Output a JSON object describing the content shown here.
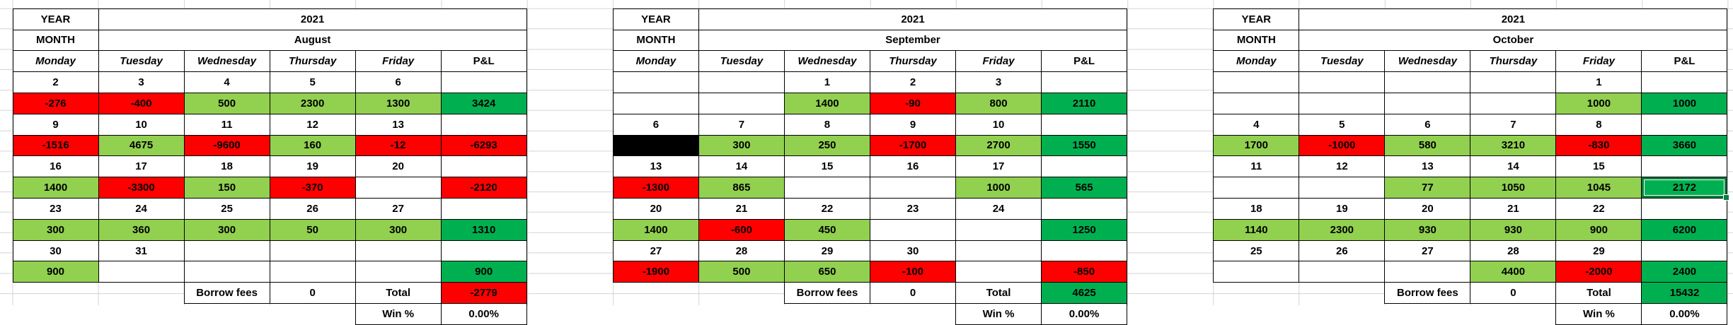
{
  "colors": {
    "loss_red": "#ff0000",
    "gain_light_green": "#92d050",
    "pnl_dark_green": "#00b050",
    "holiday_black": "#000000",
    "gridline_gray": "#d4d4d4",
    "selection_green": "#0c7d41",
    "border_black": "#000000"
  },
  "months": [
    {
      "id": "august",
      "year_row": {
        "label": "YEAR",
        "value": "2021"
      },
      "month_row": {
        "label": "MONTH",
        "value": "August"
      },
      "day_headers": [
        "Monday",
        "Tuesday",
        "Wednesday",
        "Thursday",
        "Friday",
        "P&L"
      ],
      "weeks": [
        {
          "dates": [
            "2",
            "3",
            "4",
            "5",
            "6",
            ""
          ],
          "values": [
            {
              "t": "-276",
              "bg": "red"
            },
            {
              "t": "-400",
              "bg": "red"
            },
            {
              "t": "500",
              "bg": "green"
            },
            {
              "t": "2300",
              "bg": "green"
            },
            {
              "t": "1300",
              "bg": "green"
            },
            {
              "t": "3424",
              "bg": "dgreen"
            }
          ]
        },
        {
          "dates": [
            "9",
            "10",
            "11",
            "12",
            "13",
            ""
          ],
          "values": [
            {
              "t": "-1516",
              "bg": "red"
            },
            {
              "t": "4675",
              "bg": "green"
            },
            {
              "t": "-9600",
              "bg": "red"
            },
            {
              "t": "160",
              "bg": "green"
            },
            {
              "t": "-12",
              "bg": "red"
            },
            {
              "t": "-6293",
              "bg": "red"
            }
          ]
        },
        {
          "dates": [
            "16",
            "17",
            "18",
            "19",
            "20",
            ""
          ],
          "values": [
            {
              "t": "1400",
              "bg": "green"
            },
            {
              "t": "-3300",
              "bg": "red"
            },
            {
              "t": "150",
              "bg": "green"
            },
            {
              "t": "-370",
              "bg": "red"
            },
            {
              "t": ""
            },
            {
              "t": "-2120",
              "bg": "red"
            }
          ]
        },
        {
          "dates": [
            "23",
            "24",
            "25",
            "26",
            "27",
            ""
          ],
          "values": [
            {
              "t": "300",
              "bg": "green"
            },
            {
              "t": "360",
              "bg": "green"
            },
            {
              "t": "300",
              "bg": "green"
            },
            {
              "t": "50",
              "bg": "green"
            },
            {
              "t": "300",
              "bg": "green"
            },
            {
              "t": "1310",
              "bg": "dgreen"
            }
          ]
        },
        {
          "dates": [
            "30",
            "31",
            "",
            "",
            "",
            ""
          ],
          "values": [
            {
              "t": "900",
              "bg": "green"
            },
            {
              "t": ""
            },
            {
              "t": ""
            },
            {
              "t": ""
            },
            {
              "t": ""
            },
            {
              "t": "900",
              "bg": "dgreen"
            }
          ]
        }
      ],
      "footer": {
        "borrow_label": "Borrow fees",
        "borrow_value": "0",
        "total_label": "Total",
        "total": {
          "t": "-2779",
          "bg": "red"
        }
      },
      "win": {
        "label": "Win %",
        "value": "0.00%"
      }
    },
    {
      "id": "september",
      "year_row": {
        "label": "YEAR",
        "value": "2021"
      },
      "month_row": {
        "label": "MONTH",
        "value": "September"
      },
      "day_headers": [
        "Monday",
        "Tuesday",
        "Wednesday",
        "Thursday",
        "Friday",
        "P&L"
      ],
      "weeks": [
        {
          "dates": [
            "",
            "",
            "1",
            "2",
            "3",
            ""
          ],
          "values": [
            {
              "t": ""
            },
            {
              "t": ""
            },
            {
              "t": "1400",
              "bg": "green"
            },
            {
              "t": "-90",
              "bg": "red"
            },
            {
              "t": "800",
              "bg": "green"
            },
            {
              "t": "2110",
              "bg": "dgreen"
            }
          ]
        },
        {
          "dates": [
            "6",
            "7",
            "8",
            "9",
            "10",
            ""
          ],
          "values": [
            {
              "t": "",
              "bg": "blackc"
            },
            {
              "t": "300",
              "bg": "green"
            },
            {
              "t": "250",
              "bg": "green"
            },
            {
              "t": "-1700",
              "bg": "red"
            },
            {
              "t": "2700",
              "bg": "green"
            },
            {
              "t": "1550",
              "bg": "dgreen"
            }
          ]
        },
        {
          "dates": [
            "13",
            "14",
            "15",
            "16",
            "17",
            ""
          ],
          "values": [
            {
              "t": "-1300",
              "bg": "red"
            },
            {
              "t": "865",
              "bg": "green"
            },
            {
              "t": ""
            },
            {
              "t": ""
            },
            {
              "t": "1000",
              "bg": "green"
            },
            {
              "t": "565",
              "bg": "dgreen"
            }
          ]
        },
        {
          "dates": [
            "20",
            "21",
            "22",
            "23",
            "24",
            ""
          ],
          "values": [
            {
              "t": "1400",
              "bg": "green"
            },
            {
              "t": "-600",
              "bg": "red"
            },
            {
              "t": "450",
              "bg": "green"
            },
            {
              "t": ""
            },
            {
              "t": ""
            },
            {
              "t": "1250",
              "bg": "dgreen"
            }
          ]
        },
        {
          "dates": [
            "27",
            "28",
            "29",
            "30",
            "",
            ""
          ],
          "values": [
            {
              "t": "-1900",
              "bg": "red"
            },
            {
              "t": "500",
              "bg": "green"
            },
            {
              "t": "650",
              "bg": "green"
            },
            {
              "t": "-100",
              "bg": "red"
            },
            {
              "t": ""
            },
            {
              "t": "-850",
              "bg": "red"
            }
          ]
        }
      ],
      "footer": {
        "borrow_label": "Borrow fees",
        "borrow_value": "0",
        "total_label": "Total",
        "total": {
          "t": "4625",
          "bg": "dgreen"
        }
      },
      "win": {
        "label": "Win %",
        "value": "0.00%"
      }
    },
    {
      "id": "october",
      "year_row": {
        "label": "YEAR",
        "value": "2021"
      },
      "month_row": {
        "label": "MONTH",
        "value": "October"
      },
      "day_headers": [
        "Monday",
        "Tuesday",
        "Wednesday",
        "Thursday",
        "Friday",
        "P&L"
      ],
      "weeks": [
        {
          "dates": [
            "",
            "",
            "",
            "",
            "1",
            ""
          ],
          "values": [
            {
              "t": ""
            },
            {
              "t": ""
            },
            {
              "t": ""
            },
            {
              "t": ""
            },
            {
              "t": "1000",
              "bg": "green"
            },
            {
              "t": "1000",
              "bg": "dgreen"
            }
          ]
        },
        {
          "dates": [
            "4",
            "5",
            "6",
            "7",
            "8",
            ""
          ],
          "values": [
            {
              "t": "1700",
              "bg": "green"
            },
            {
              "t": "-1000",
              "bg": "red"
            },
            {
              "t": "580",
              "bg": "green"
            },
            {
              "t": "3210",
              "bg": "green"
            },
            {
              "t": "-830",
              "bg": "red"
            },
            {
              "t": "3660",
              "bg": "dgreen"
            }
          ]
        },
        {
          "dates": [
            "11",
            "12",
            "13",
            "14",
            "15",
            ""
          ],
          "values": [
            {
              "t": ""
            },
            {
              "t": ""
            },
            {
              "t": "77",
              "bg": "green"
            },
            {
              "t": "1050",
              "bg": "green"
            },
            {
              "t": "1045",
              "bg": "green"
            },
            {
              "t": "2172",
              "bg": "dgreen",
              "selected": true
            }
          ]
        },
        {
          "dates": [
            "18",
            "19",
            "20",
            "21",
            "22",
            ""
          ],
          "values": [
            {
              "t": "1140",
              "bg": "green"
            },
            {
              "t": "2300",
              "bg": "green"
            },
            {
              "t": "930",
              "bg": "green"
            },
            {
              "t": "930",
              "bg": "green"
            },
            {
              "t": "900",
              "bg": "green"
            },
            {
              "t": "6200",
              "bg": "dgreen"
            }
          ]
        },
        {
          "dates": [
            "25",
            "26",
            "27",
            "28",
            "29",
            ""
          ],
          "values": [
            {
              "t": ""
            },
            {
              "t": ""
            },
            {
              "t": ""
            },
            {
              "t": "4400",
              "bg": "green"
            },
            {
              "t": "-2000",
              "bg": "red"
            },
            {
              "t": "2400",
              "bg": "dgreen"
            }
          ]
        }
      ],
      "footer": {
        "borrow_label": "Borrow fees",
        "borrow_value": "0",
        "total_label": "Total",
        "total": {
          "t": "15432",
          "bg": "dgreen"
        }
      },
      "win": {
        "label": "Win %",
        "value": "0.00%"
      }
    }
  ]
}
